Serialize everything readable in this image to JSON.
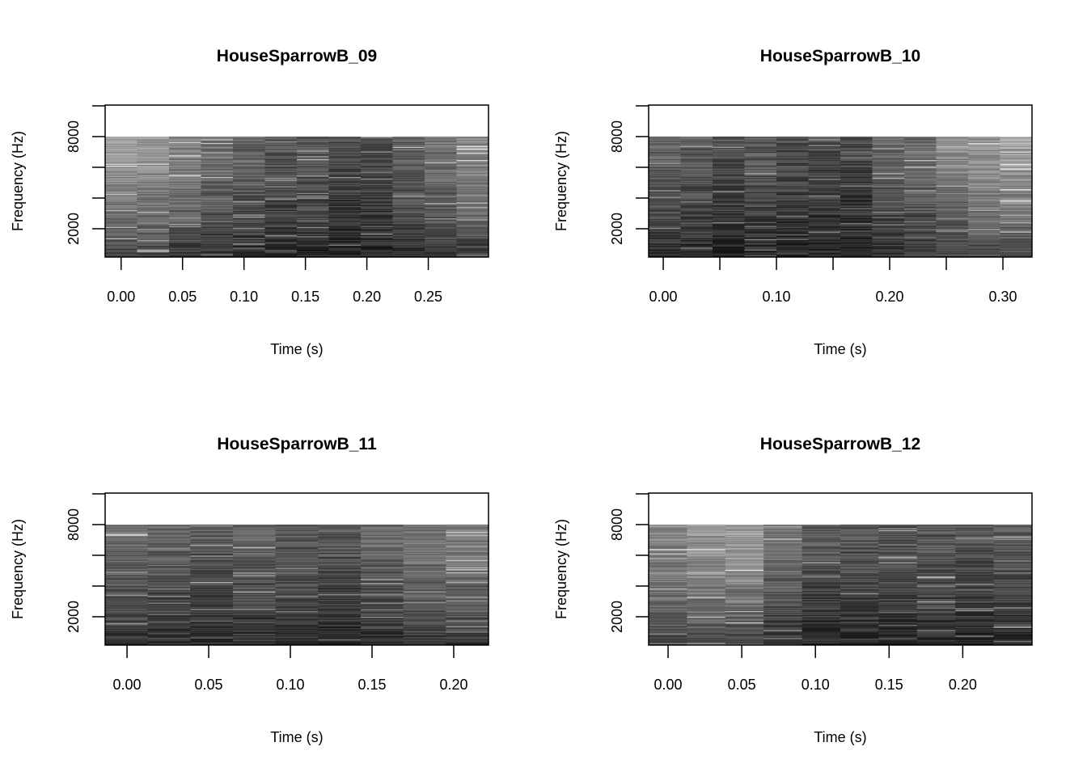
{
  "chart_data": [
    {
      "type": "heatmap",
      "title": "HouseSparrowB_09",
      "xlabel": "Time (s)",
      "ylabel": "Frequency (Hz)",
      "xticks": [
        0.0,
        0.05,
        0.1,
        0.15,
        0.2,
        0.25
      ],
      "xtick_labels": [
        "0.00",
        "0.05",
        "0.10",
        "0.15",
        "0.20",
        "0.25"
      ],
      "yticks": [
        2000,
        4000,
        6000,
        8000,
        10000
      ],
      "ytick_labels": [
        "2000",
        "",
        "",
        "8000",
        ""
      ],
      "xlim": [
        -0.013,
        0.299
      ],
      "ylim": [
        158,
        10050
      ],
      "freq_range": [
        0,
        8000
      ],
      "colormap": "grayscale",
      "column_brightness": [
        0.62,
        0.6,
        0.52,
        0.45,
        0.4,
        0.33,
        0.36,
        0.3,
        0.3,
        0.38,
        0.45,
        0.55
      ]
    },
    {
      "type": "heatmap",
      "title": "HouseSparrowB_10",
      "xlabel": "Time (s)",
      "ylabel": "Frequency (Hz)",
      "xticks": [
        0.0,
        0.05,
        0.1,
        0.15,
        0.2,
        0.25,
        0.3
      ],
      "xtick_labels": [
        "0.00",
        "",
        "0.10",
        "",
        "0.20",
        "",
        "0.30"
      ],
      "yticks": [
        2000,
        4000,
        6000,
        8000,
        10000
      ],
      "ytick_labels": [
        "2000",
        "",
        "",
        "8000",
        ""
      ],
      "xlim": [
        -0.0129,
        0.3257
      ],
      "ylim": [
        158,
        10050
      ],
      "freq_range": [
        0,
        8000
      ],
      "colormap": "grayscale",
      "column_brightness": [
        0.4,
        0.36,
        0.3,
        0.35,
        0.3,
        0.3,
        0.28,
        0.4,
        0.45,
        0.55,
        0.6,
        0.65
      ]
    },
    {
      "type": "heatmap",
      "title": "HouseSparrowB_11",
      "xlabel": "Time (s)",
      "ylabel": "Frequency (Hz)",
      "xticks": [
        0.0,
        0.05,
        0.1,
        0.15,
        0.2
      ],
      "xtick_labels": [
        "0.00",
        "0.05",
        "0.10",
        "0.15",
        "0.20"
      ],
      "yticks": [
        2000,
        4000,
        6000,
        8000,
        10000
      ],
      "ytick_labels": [
        "2000",
        "",
        "",
        "8000",
        ""
      ],
      "xlim": [
        -0.0134,
        0.2213
      ],
      "ylim": [
        158,
        10050
      ],
      "freq_range": [
        0,
        8000
      ],
      "colormap": "grayscale",
      "column_brightness": [
        0.42,
        0.4,
        0.35,
        0.38,
        0.36,
        0.33,
        0.4,
        0.48,
        0.5
      ]
    },
    {
      "type": "heatmap",
      "title": "HouseSparrowB_12",
      "xlabel": "Time (s)",
      "ylabel": "Frequency (Hz)",
      "xticks": [
        0.0,
        0.05,
        0.1,
        0.15,
        0.2
      ],
      "xtick_labels": [
        "0.00",
        "0.05",
        "0.10",
        "0.15",
        "0.20"
      ],
      "yticks": [
        2000,
        4000,
        6000,
        8000,
        10000
      ],
      "ytick_labels": [
        "2000",
        "",
        "",
        "8000",
        ""
      ],
      "xlim": [
        -0.0132,
        0.247
      ],
      "ylim": [
        158,
        10050
      ],
      "freq_range": [
        0,
        8000
      ],
      "colormap": "grayscale",
      "column_brightness": [
        0.55,
        0.6,
        0.62,
        0.45,
        0.35,
        0.35,
        0.33,
        0.35,
        0.33,
        0.35
      ]
    }
  ]
}
